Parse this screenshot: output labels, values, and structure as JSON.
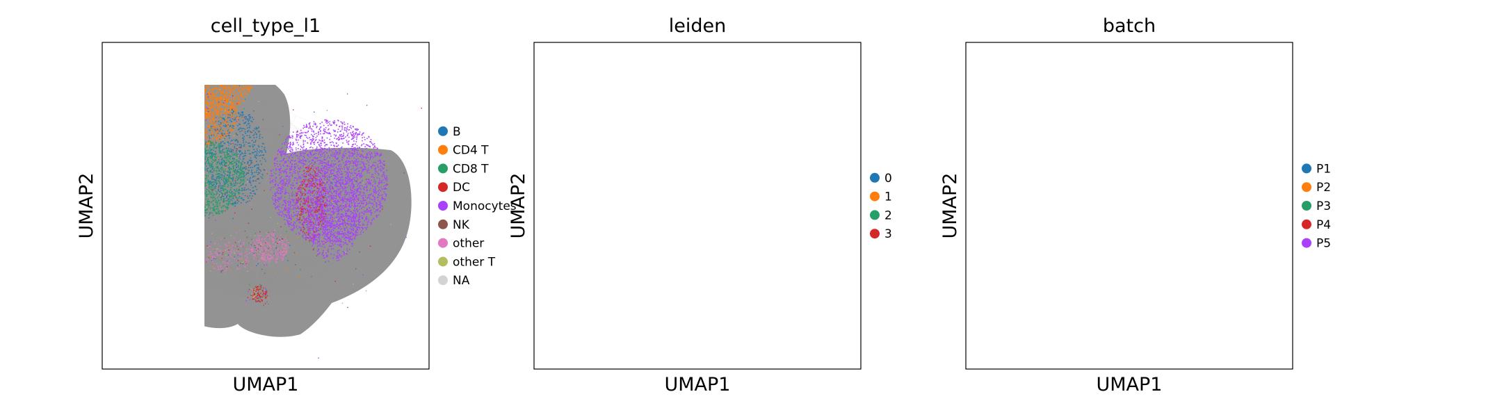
{
  "chart_data": [
    {
      "type": "scatter",
      "title": "cell_type_l1",
      "xlabel": "UMAP1",
      "ylabel": "UMAP2",
      "grid": false,
      "ticks": false,
      "legend_position": "right",
      "legend": [
        {
          "label": "B",
          "color": "#1f77b4"
        },
        {
          "label": "CD4 T",
          "color": "#ff7f0e"
        },
        {
          "label": "CD8 T",
          "color": "#279e68"
        },
        {
          "label": "DC",
          "color": "#d62728"
        },
        {
          "label": "Monocytes",
          "color": "#aa40fc"
        },
        {
          "label": "NK",
          "color": "#8c564b"
        },
        {
          "label": "other",
          "color": "#e377c2"
        },
        {
          "label": "other T",
          "color": "#b5bd61"
        },
        {
          "label": "NA",
          "color": "#d3d3d3"
        }
      ]
    },
    {
      "type": "scatter",
      "title": "leiden",
      "xlabel": "UMAP1",
      "ylabel": "UMAP2",
      "grid": false,
      "ticks": false,
      "legend_position": "right",
      "legend": [
        {
          "label": "0",
          "color": "#1f77b4"
        },
        {
          "label": "1",
          "color": "#ff7f0e"
        },
        {
          "label": "2",
          "color": "#279e68"
        },
        {
          "label": "3",
          "color": "#d62728"
        }
      ]
    },
    {
      "type": "scatter",
      "title": "batch",
      "xlabel": "UMAP1",
      "ylabel": "UMAP2",
      "grid": false,
      "ticks": false,
      "legend_position": "right",
      "legend": [
        {
          "label": "P1",
          "color": "#1f77b4"
        },
        {
          "label": "P2",
          "color": "#ff7f0e"
        },
        {
          "label": "P3",
          "color": "#279e68"
        },
        {
          "label": "P4",
          "color": "#d62728"
        },
        {
          "label": "P5",
          "color": "#aa40fc"
        }
      ]
    }
  ],
  "colors": {
    "edges": "#808080",
    "background_cells": "#808080"
  }
}
